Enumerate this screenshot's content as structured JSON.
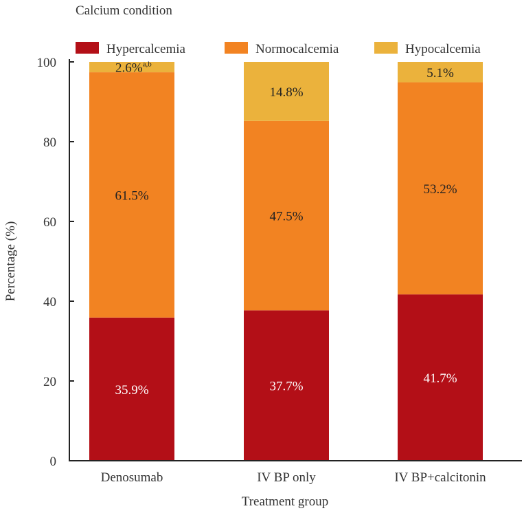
{
  "chart_data": {
    "type": "bar",
    "stacked": true,
    "title": "",
    "legend_title": "Calcium condition",
    "legend_placement": "top",
    "xlabel": "Treatment group",
    "ylabel": "Percentage (%)",
    "ylim": [
      0,
      100
    ],
    "yticks": [
      0,
      20,
      40,
      60,
      80,
      100
    ],
    "grid": false,
    "categories": [
      "Denosumab",
      "IV BP only",
      "IV BP+calcitonin"
    ],
    "series": [
      {
        "name": "Hypercalcemia",
        "color": "#B30F17",
        "label_color": "#ffffff",
        "values": [
          35.9,
          37.7,
          41.7
        ],
        "labels": [
          "35.9%",
          "37.7%",
          "41.7%"
        ]
      },
      {
        "name": "Normocalcemia",
        "color": "#F28322",
        "label_color": "#222222",
        "values": [
          61.5,
          47.5,
          53.2
        ],
        "labels": [
          "61.5%",
          "47.5%",
          "53.2%"
        ]
      },
      {
        "name": "Hypocalcemia",
        "color": "#EBB23C",
        "label_color": "#222222",
        "values": [
          2.6,
          14.8,
          5.1
        ],
        "labels": [
          "2.6%",
          "14.8%",
          "5.1%"
        ]
      }
    ],
    "annotations": [
      {
        "category": "Denosumab",
        "series": "Hypocalcemia",
        "superscript": "a,b"
      }
    ]
  }
}
